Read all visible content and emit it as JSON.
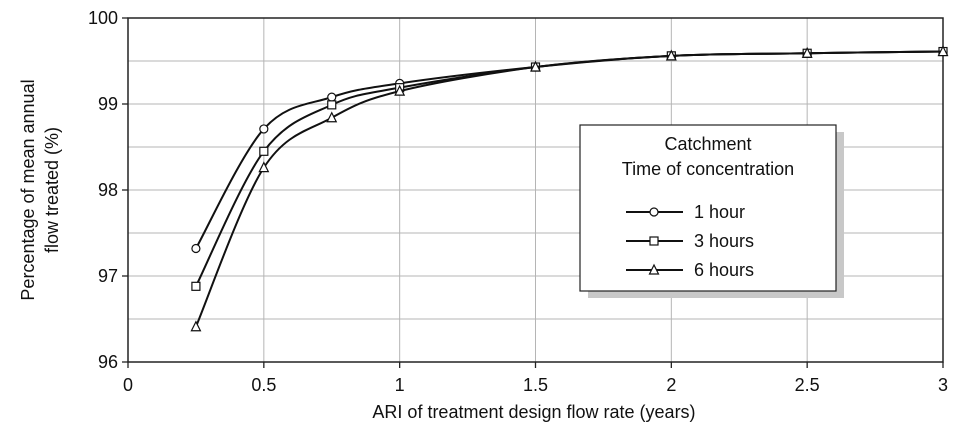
{
  "chart_data": {
    "type": "line",
    "title": "",
    "xlabel": "ARI of treatment design flow rate (years)",
    "ylabel_line1": "Percentage of mean annual",
    "ylabel_line2": "flow treated (%)",
    "xlim": [
      0,
      3
    ],
    "ylim": [
      96,
      100
    ],
    "xticks": [
      0,
      0.5,
      1,
      1.5,
      2,
      2.5,
      3
    ],
    "xtick_labels": [
      "0",
      "0.5",
      "1",
      "1.5",
      "2",
      "2.5",
      "3"
    ],
    "yticks": [
      96,
      97,
      98,
      99,
      100
    ],
    "ytick_labels": [
      "96",
      "97",
      "98",
      "99",
      "100"
    ],
    "grid": true,
    "legend": {
      "title_line1": "Catchment",
      "title_line2": "Time of concentration",
      "placement": "center-right"
    },
    "series": [
      {
        "name": "1 hour",
        "marker": "circle",
        "x": [
          0.25,
          0.5,
          0.75,
          1,
          1.5,
          2,
          2.5,
          3
        ],
        "y": [
          97.32,
          98.71,
          99.08,
          99.24,
          99.43,
          99.56,
          99.59,
          99.61
        ]
      },
      {
        "name": "3 hours",
        "marker": "square",
        "x": [
          0.25,
          0.5,
          0.75,
          1,
          1.5,
          2,
          2.5,
          3
        ],
        "y": [
          96.88,
          98.45,
          98.99,
          99.19,
          99.43,
          99.56,
          99.59,
          99.61
        ]
      },
      {
        "name": "6 hours",
        "marker": "triangle",
        "x": [
          0.25,
          0.5,
          0.75,
          1,
          1.5,
          2,
          2.5,
          3
        ],
        "y": [
          96.41,
          98.26,
          98.84,
          99.15,
          99.43,
          99.56,
          99.59,
          99.61
        ]
      }
    ]
  }
}
